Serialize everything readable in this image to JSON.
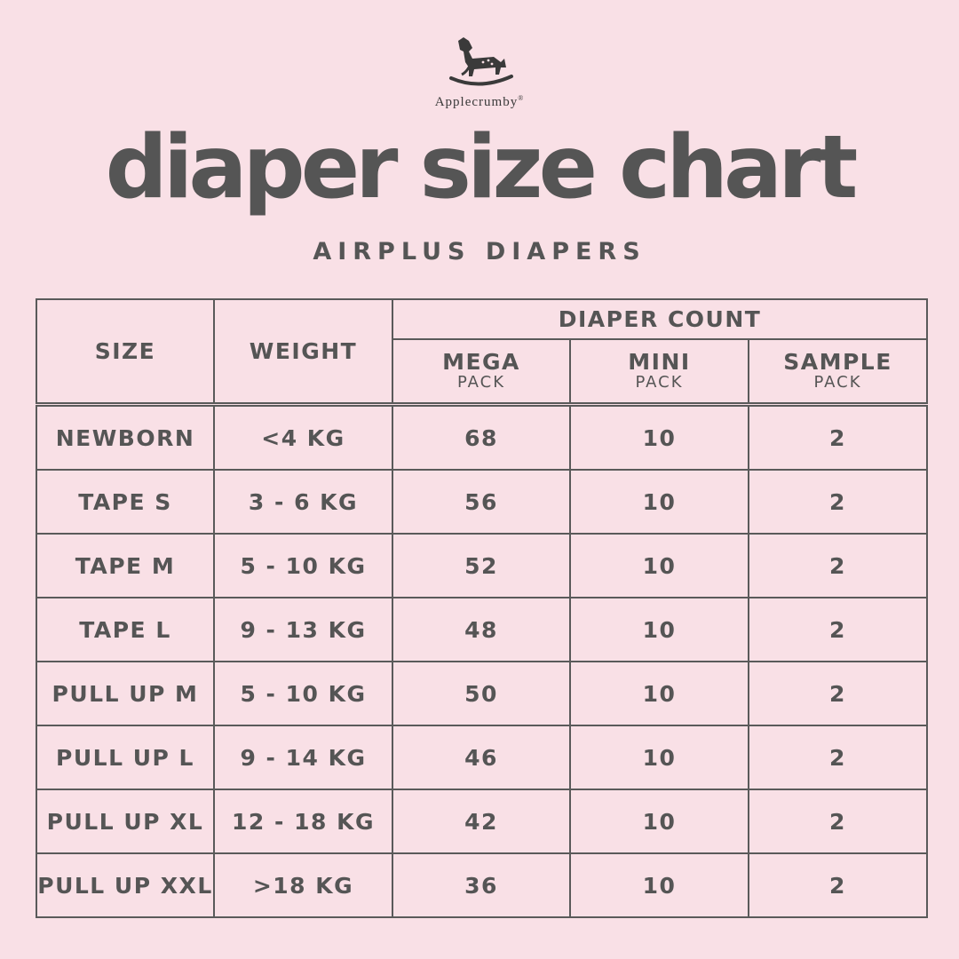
{
  "brand": {
    "name": "Applecrumby",
    "mark": "®"
  },
  "title": "diaper size chart",
  "subtitle": "AIRPLUS DIAPERS",
  "table": {
    "headers": {
      "size": "SIZE",
      "weight": "WEIGHT",
      "group": "DIAPER COUNT",
      "packs": [
        {
          "name": "MEGA",
          "unit": "PACK"
        },
        {
          "name": "MINI",
          "unit": "PACK"
        },
        {
          "name": "SAMPLE",
          "unit": "PACK"
        }
      ]
    },
    "rows": [
      [
        "NEWBORN",
        "<4 KG",
        "68",
        "10",
        "2"
      ],
      [
        "TAPE S",
        "3 - 6 KG",
        "56",
        "10",
        "2"
      ],
      [
        "TAPE M",
        "5 - 10 KG",
        "52",
        "10",
        "2"
      ],
      [
        "TAPE L",
        "9 - 13 KG",
        "48",
        "10",
        "2"
      ],
      [
        "PULL UP M",
        "5 - 10 KG",
        "50",
        "10",
        "2"
      ],
      [
        "PULL UP L",
        "9 - 14 KG",
        "46",
        "10",
        "2"
      ],
      [
        "PULL UP XL",
        "12 - 18 KG",
        "42",
        "10",
        "2"
      ],
      [
        "PULL UP XXL",
        ">18 KG",
        "36",
        "10",
        "2"
      ]
    ]
  },
  "colors": {
    "background": "#f9e0e6",
    "text": "#555555",
    "border": "#5a5a5a"
  },
  "icons": {
    "logo": "rocking-horse-icon"
  }
}
